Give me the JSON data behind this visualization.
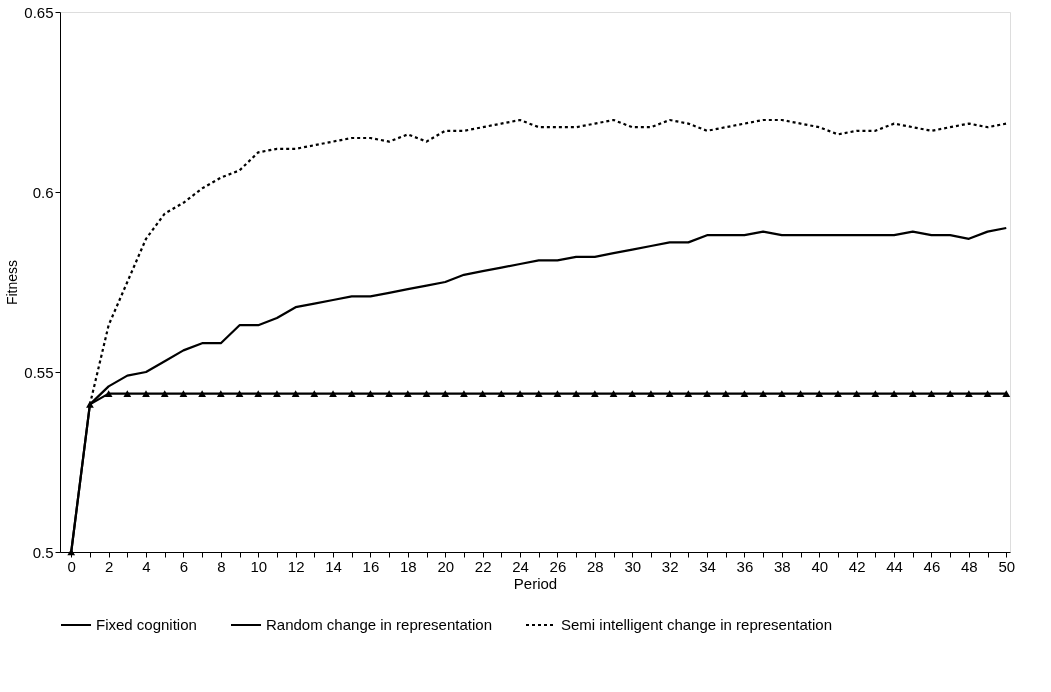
{
  "chart_data": {
    "type": "line",
    "xlabel": "Period",
    "ylabel": "Fitness",
    "x": [
      0,
      1,
      2,
      3,
      4,
      5,
      6,
      7,
      8,
      9,
      10,
      11,
      12,
      13,
      14,
      15,
      16,
      17,
      18,
      19,
      20,
      21,
      22,
      23,
      24,
      25,
      26,
      27,
      28,
      29,
      30,
      31,
      32,
      33,
      34,
      35,
      36,
      37,
      38,
      39,
      40,
      41,
      42,
      43,
      44,
      45,
      46,
      47,
      48,
      49,
      50
    ],
    "series": [
      {
        "name": "Fixed cognition",
        "color": "#000000",
        "marker": "triangle",
        "line_style": "solid",
        "values": [
          0.5,
          0.541,
          0.544,
          0.544,
          0.544,
          0.544,
          0.544,
          0.544,
          0.544,
          0.544,
          0.544,
          0.544,
          0.544,
          0.544,
          0.544,
          0.544,
          0.544,
          0.544,
          0.544,
          0.544,
          0.544,
          0.544,
          0.544,
          0.544,
          0.544,
          0.544,
          0.544,
          0.544,
          0.544,
          0.544,
          0.544,
          0.544,
          0.544,
          0.544,
          0.544,
          0.544,
          0.544,
          0.544,
          0.544,
          0.544,
          0.544,
          0.544,
          0.544,
          0.544,
          0.544,
          0.544,
          0.544,
          0.544,
          0.544,
          0.544,
          0.544
        ]
      },
      {
        "name": "Random change in representation",
        "color": "#000000",
        "marker": "none",
        "line_style": "solid",
        "values": [
          0.5,
          0.541,
          0.546,
          0.549,
          0.55,
          0.553,
          0.556,
          0.558,
          0.558,
          0.563,
          0.563,
          0.565,
          0.568,
          0.569,
          0.57,
          0.571,
          0.571,
          0.572,
          0.573,
          0.574,
          0.575,
          0.577,
          0.578,
          0.579,
          0.58,
          0.581,
          0.581,
          0.582,
          0.582,
          0.583,
          0.584,
          0.585,
          0.586,
          0.586,
          0.588,
          0.588,
          0.588,
          0.589,
          0.588,
          0.588,
          0.588,
          0.588,
          0.588,
          0.588,
          0.588,
          0.589,
          0.588,
          0.588,
          0.587,
          0.589,
          0.59
        ]
      },
      {
        "name": "Semi intelligent change in representation",
        "color": "#000000",
        "marker": "none",
        "line_style": "dotted",
        "values": [
          null,
          0.541,
          0.563,
          0.575,
          0.587,
          0.594,
          0.597,
          0.601,
          0.604,
          0.606,
          0.611,
          0.612,
          0.612,
          0.613,
          0.614,
          0.615,
          0.615,
          0.614,
          0.616,
          0.614,
          0.617,
          0.617,
          0.618,
          0.619,
          0.62,
          0.618,
          0.618,
          0.618,
          0.619,
          0.62,
          0.618,
          0.618,
          0.62,
          0.619,
          0.617,
          0.618,
          0.619,
          0.62,
          0.62,
          0.619,
          0.618,
          0.616,
          0.617,
          0.617,
          0.619,
          0.618,
          0.617,
          0.618,
          0.619,
          0.618,
          0.619
        ]
      }
    ],
    "xlim": [
      -0.6,
      50.2
    ],
    "ylim": [
      0.5,
      0.65
    ],
    "xticks": [
      0,
      {
        "value": 1,
        "label": null
      },
      2,
      {
        "value": 3,
        "label": null
      },
      4,
      {
        "value": 5,
        "label": null
      },
      6,
      {
        "value": 7,
        "label": null
      },
      8,
      {
        "value": 9,
        "label": null
      },
      10,
      {
        "value": 11,
        "label": null
      },
      12,
      {
        "value": 13,
        "label": null
      },
      14,
      {
        "value": 15,
        "label": null
      },
      16,
      {
        "value": 17,
        "label": null
      },
      18,
      {
        "value": 19,
        "label": null
      },
      20,
      {
        "value": 21,
        "label": null
      },
      22,
      {
        "value": 23,
        "label": null
      },
      24,
      {
        "value": 25,
        "label": null
      },
      26,
      {
        "value": 27,
        "label": null
      },
      28,
      {
        "value": 29,
        "label": null
      },
      30,
      {
        "value": 31,
        "label": null
      },
      32,
      {
        "value": 33,
        "label": null
      },
      34,
      {
        "value": 35,
        "label": null
      },
      36,
      {
        "value": 37,
        "label": null
      },
      38,
      {
        "value": 39,
        "label": null
      },
      40,
      {
        "value": 41,
        "label": null
      },
      42,
      {
        "value": 43,
        "label": null
      },
      44,
      {
        "value": 45,
        "label": null
      },
      46,
      {
        "value": 47,
        "label": null
      },
      48,
      {
        "value": 49,
        "label": null
      },
      50
    ],
    "yticks": [
      0.5,
      0.55,
      0.6,
      0.65
    ],
    "grid": false,
    "legend": "bottom"
  }
}
